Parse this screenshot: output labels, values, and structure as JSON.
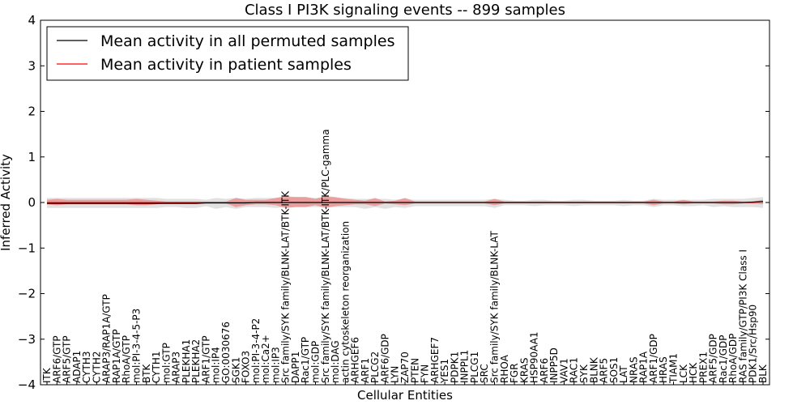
{
  "chart_data": {
    "type": "line",
    "title": "Class I PI3K signaling events -- 899 samples",
    "xlabel": "Cellular Entities",
    "ylabel": "Inferred Activity",
    "ylim": [
      -4,
      4
    ],
    "yticks": [
      "−4",
      "−3",
      "−2",
      "−1",
      "0",
      "1",
      "2",
      "3",
      "4"
    ],
    "grid": false,
    "legend_position": "top-left",
    "categories": [
      "ITK",
      "ARF6/GTP",
      "ARF5/GTP",
      "ADAP1",
      "CYTH3",
      "CYTH2",
      "ARAP3/RAP1A/GTP",
      "RAP1A/GTP",
      "RhoA/GTP",
      "mol:PI-3-4-5-P3",
      "BTK",
      "CYTH1",
      "mol:GTP",
      "ARAP3",
      "PLEKHA1",
      "PLEKHA2",
      "ARF1/GTP",
      "mol:IP4",
      "GO:0030676",
      "SGK1",
      "FOXO3",
      "mol:PI-3-4-P2",
      "mol:Ca2+",
      "mol:IP3",
      "Src family/SYK family/BLNK-LAT/BTK-ITK",
      "DAPP1",
      "Rac1/GTP",
      "mol:GDP",
      "Src family/SYK family/BLNK-LAT/BTK-ITK/PLC-gamma",
      "mol:DAG",
      "actin cytoskeleton reorganization",
      "ARHGEF6",
      "ARF1",
      "PLCG2",
      "ARF6/GDP",
      "LYN",
      "ZAP70",
      "PTEN",
      "FYN",
      "ARHGEF7",
      "YES1",
      "PDPK1",
      "INPPL1",
      "PLCG1",
      "SRC",
      "Src family/SYK family/BLNK-LAT",
      "RHOA",
      "FGR",
      "KRAS",
      "HSP90AA1",
      "ARF6",
      "INPP5D",
      "VAV1",
      "RAC1",
      "SYK",
      "BLNK",
      "ARF5",
      "SOS1",
      "LAT",
      "NRAS",
      "RAP1A",
      "ARF1/GDP",
      "HRAS",
      "TIAM1",
      "LCK",
      "HCK",
      "PREX1",
      "ARF5/GDP",
      "Rac1/GDP",
      "RhoA/GDP",
      "RAS family/GTP/PI3K Class I",
      "PDK1/Src/Hsp90",
      "BLK"
    ],
    "series": [
      {
        "name": "Mean activity in all permuted samples",
        "color": "#000000",
        "values": [
          -0.02,
          -0.02,
          -0.02,
          -0.02,
          -0.02,
          -0.02,
          -0.02,
          -0.02,
          -0.02,
          -0.02,
          -0.02,
          -0.02,
          -0.02,
          -0.02,
          -0.02,
          -0.02,
          -0.01,
          -0.01,
          -0.01,
          -0.01,
          -0.01,
          0.0,
          0.0,
          0.0,
          0.0,
          0.0,
          0.0,
          0.0,
          0.0,
          0.0,
          0.0,
          0.0,
          0.0,
          0.0,
          0.0,
          0.0,
          0.0,
          0.0,
          0.0,
          0.0,
          0.0,
          0.0,
          0.0,
          0.0,
          0.0,
          0.0,
          0.0,
          0.0,
          0.0,
          0.0,
          0.0,
          0.0,
          0.0,
          0.0,
          0.0,
          0.0,
          0.0,
          0.0,
          0.0,
          0.0,
          0.0,
          0.0,
          0.0,
          0.0,
          0.0,
          0.0,
          0.0,
          0.0,
          0.0,
          0.0,
          0.0,
          0.01,
          0.02
        ],
        "lower": [
          -0.12,
          -0.12,
          -0.12,
          -0.12,
          -0.12,
          -0.12,
          -0.12,
          -0.12,
          -0.12,
          -0.12,
          -0.12,
          -0.12,
          -0.1,
          -0.1,
          -0.12,
          -0.12,
          -0.08,
          -0.14,
          -0.1,
          -0.14,
          -0.1,
          -0.1,
          -0.1,
          -0.12,
          -0.1,
          -0.1,
          -0.1,
          -0.1,
          -0.1,
          -0.1,
          -0.1,
          -0.1,
          -0.14,
          -0.1,
          -0.14,
          -0.1,
          -0.12,
          -0.08,
          -0.08,
          -0.08,
          -0.08,
          -0.08,
          -0.08,
          -0.08,
          -0.08,
          -0.12,
          -0.06,
          -0.06,
          -0.06,
          -0.08,
          -0.06,
          -0.06,
          -0.06,
          -0.08,
          -0.06,
          -0.06,
          -0.06,
          -0.06,
          -0.08,
          -0.06,
          -0.06,
          -0.1,
          -0.06,
          -0.06,
          -0.08,
          -0.08,
          -0.06,
          -0.1,
          -0.08,
          -0.1,
          -0.1,
          -0.1,
          -0.12
        ],
        "upper": [
          0.1,
          0.1,
          0.1,
          0.1,
          0.1,
          0.1,
          0.1,
          0.1,
          0.1,
          0.1,
          0.1,
          0.1,
          0.08,
          0.08,
          0.08,
          0.08,
          0.06,
          0.1,
          0.08,
          0.1,
          0.08,
          0.1,
          0.1,
          0.1,
          0.1,
          0.12,
          0.12,
          0.1,
          0.12,
          0.1,
          0.1,
          0.08,
          0.08,
          0.08,
          0.08,
          0.06,
          0.08,
          0.06,
          0.06,
          0.06,
          0.06,
          0.06,
          0.06,
          0.06,
          0.06,
          0.08,
          0.06,
          0.04,
          0.04,
          0.06,
          0.06,
          0.04,
          0.04,
          0.06,
          0.06,
          0.04,
          0.04,
          0.04,
          0.06,
          0.04,
          0.04,
          0.08,
          0.06,
          0.06,
          0.06,
          0.06,
          0.06,
          0.08,
          0.08,
          0.08,
          0.08,
          0.1,
          0.12
        ]
      },
      {
        "name": "Mean activity in patient samples",
        "color": "#ff0000",
        "values": [
          0.0,
          0.0,
          0.0,
          0.0,
          0.0,
          0.0,
          0.0,
          0.0,
          0.0,
          0.0,
          0.0,
          0.0,
          0.0,
          0.0,
          0.0,
          0.0,
          0.0,
          0.0,
          0.0,
          0.0,
          0.0,
          0.0,
          0.0,
          0.0,
          0.0,
          0.0,
          0.0,
          0.0,
          0.0,
          0.0,
          0.0,
          0.0,
          0.0,
          0.0,
          0.0,
          0.0,
          0.0,
          0.0,
          0.0,
          0.0,
          0.0,
          0.0,
          0.0,
          0.0,
          0.0,
          0.0,
          0.0,
          0.0,
          0.0,
          0.0,
          0.0,
          0.0,
          0.0,
          0.0,
          0.0,
          0.0,
          0.0,
          0.0,
          0.0,
          0.0,
          0.0,
          0.0,
          0.0,
          0.0,
          0.0,
          0.0,
          0.0,
          0.0,
          0.0,
          0.0,
          0.0,
          0.0,
          0.02
        ],
        "lower": [
          -0.04,
          -0.06,
          -0.04,
          -0.04,
          -0.04,
          -0.04,
          -0.04,
          -0.04,
          -0.04,
          -0.06,
          -0.06,
          -0.04,
          -0.02,
          -0.02,
          -0.02,
          -0.02,
          -0.02,
          -0.02,
          -0.02,
          -0.1,
          -0.06,
          -0.04,
          -0.04,
          -0.06,
          -0.12,
          -0.1,
          -0.1,
          -0.06,
          -0.12,
          -0.08,
          -0.06,
          -0.04,
          -0.04,
          -0.08,
          -0.02,
          -0.04,
          -0.06,
          -0.02,
          -0.02,
          -0.02,
          -0.02,
          -0.02,
          -0.02,
          -0.02,
          -0.02,
          -0.06,
          -0.02,
          -0.02,
          -0.02,
          -0.02,
          -0.02,
          -0.02,
          -0.02,
          -0.02,
          -0.02,
          -0.02,
          -0.02,
          -0.02,
          -0.02,
          -0.02,
          -0.02,
          -0.06,
          -0.02,
          -0.02,
          -0.04,
          -0.02,
          -0.02,
          -0.02,
          -0.04,
          -0.04,
          -0.02,
          -0.02,
          -0.04
        ],
        "upper": [
          0.06,
          0.08,
          0.06,
          0.06,
          0.06,
          0.06,
          0.06,
          0.06,
          0.06,
          0.08,
          0.06,
          0.04,
          0.02,
          0.02,
          0.02,
          0.02,
          0.02,
          0.02,
          0.02,
          0.1,
          0.06,
          0.06,
          0.06,
          0.1,
          0.14,
          0.12,
          0.12,
          0.08,
          0.14,
          0.12,
          0.08,
          0.06,
          0.04,
          0.1,
          0.02,
          0.04,
          0.1,
          0.02,
          0.02,
          0.02,
          0.02,
          0.02,
          0.02,
          0.02,
          0.02,
          0.08,
          0.02,
          0.02,
          0.02,
          0.02,
          0.02,
          0.02,
          0.02,
          0.02,
          0.02,
          0.02,
          0.02,
          0.02,
          0.02,
          0.02,
          0.02,
          0.06,
          0.02,
          0.02,
          0.06,
          0.02,
          0.02,
          0.02,
          0.04,
          0.04,
          0.02,
          0.02,
          0.06
        ]
      }
    ]
  }
}
